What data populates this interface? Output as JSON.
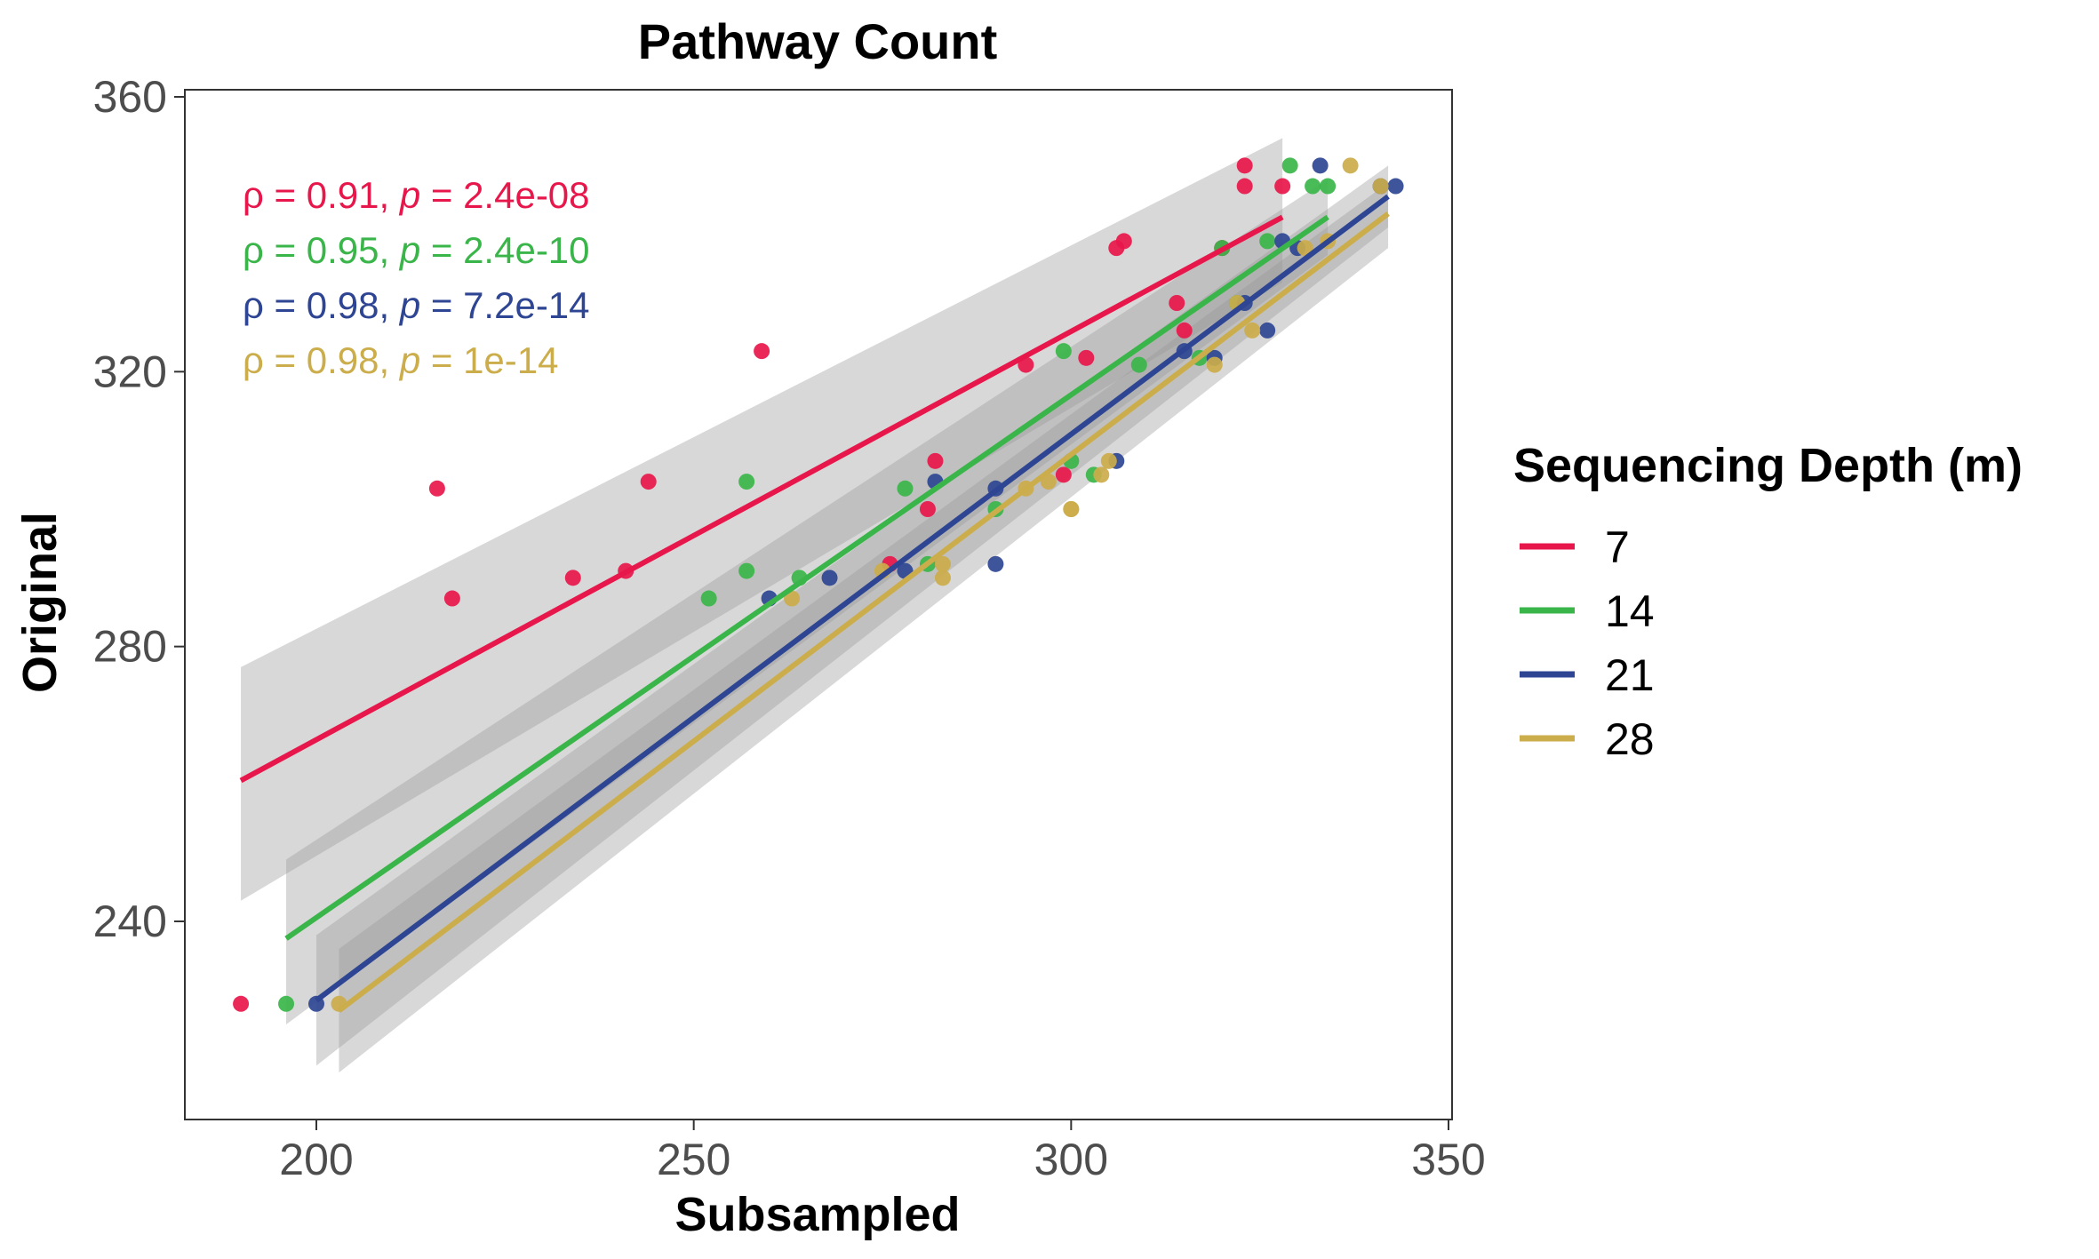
{
  "chart_data": {
    "type": "scatter",
    "title": "Pathway Count",
    "xlabel": "Subsampled",
    "ylabel": "Original",
    "xlim": [
      182,
      350
    ],
    "ylim": [
      211,
      360
    ],
    "x_ticks": [
      200,
      250,
      300,
      350
    ],
    "y_ticks": [
      240,
      280,
      320,
      360
    ],
    "grid": false,
    "legend": {
      "title": "Sequencing Depth (m)",
      "placement": "right"
    },
    "series": [
      {
        "name": "7",
        "color": "#E8174B",
        "x": [
          190,
          216,
          218,
          234,
          241,
          244,
          259,
          276,
          281,
          282,
          294,
          299,
          302,
          306,
          307,
          314,
          315,
          320,
          323,
          323,
          328
        ],
        "y": [
          228,
          303,
          287,
          290,
          291,
          304,
          323,
          292,
          300,
          307,
          321,
          305,
          322,
          338,
          339,
          330,
          326,
          338,
          350,
          347,
          347
        ],
        "fit": {
          "x": [
            190,
            328
          ],
          "y": [
            260.5,
            342.5
          ],
          "ci_lower": [
            243,
            333
          ],
          "ci_upper": [
            277,
            354
          ]
        },
        "annotation": {
          "rho": "0.91",
          "p": "2.4e-08"
        }
      },
      {
        "name": "14",
        "color": "#3AB549",
        "x": [
          196,
          252,
          257,
          257,
          264,
          278,
          281,
          290,
          299,
          300,
          303,
          309,
          317,
          320,
          322,
          326,
          329,
          332,
          334
        ],
        "y": [
          228,
          287,
          291,
          304,
          290,
          303,
          292,
          300,
          323,
          307,
          305,
          321,
          322,
          338,
          330,
          339,
          350,
          347,
          347
        ],
        "fit": {
          "x": [
            196,
            334
          ],
          "y": [
            237.5,
            342.5
          ],
          "ci_lower": [
            225,
            337
          ],
          "ci_upper": [
            249,
            348
          ]
        },
        "annotation": {
          "rho": "0.95",
          "p": "2.4e-10"
        }
      },
      {
        "name": "21",
        "color": "#2E4593",
        "x": [
          200,
          260,
          268,
          278,
          282,
          290,
          290,
          306,
          315,
          319,
          323,
          326,
          328,
          330,
          333,
          341,
          343
        ],
        "y": [
          228,
          287,
          290,
          291,
          304,
          303,
          292,
          307,
          323,
          322,
          330,
          326,
          339,
          338,
          350,
          347,
          347
        ],
        "fit": {
          "x": [
            200,
            342
          ],
          "y": [
            228.5,
            345.5
          ],
          "ci_lower": [
            219,
            341
          ],
          "ci_upper": [
            238,
            350
          ]
        },
        "annotation": {
          "rho": "0.98",
          "p": "7.2e-14"
        }
      },
      {
        "name": "28",
        "color": "#CCAD4B",
        "x": [
          203,
          263,
          275,
          283,
          283,
          294,
          297,
          300,
          300,
          304,
          305,
          319,
          322,
          324,
          331,
          334,
          337,
          341
        ],
        "y": [
          228,
          287,
          291,
          290,
          292,
          303,
          304,
          300,
          300,
          305,
          307,
          321,
          330,
          326,
          338,
          339,
          350,
          347
        ],
        "fit": {
          "x": [
            203,
            342
          ],
          "y": [
            227,
            343
          ],
          "ci_lower": [
            218,
            338
          ],
          "ci_upper": [
            236,
            347.5
          ]
        },
        "annotation": {
          "rho": "0.98",
          "p": "1e-14"
        }
      }
    ]
  }
}
